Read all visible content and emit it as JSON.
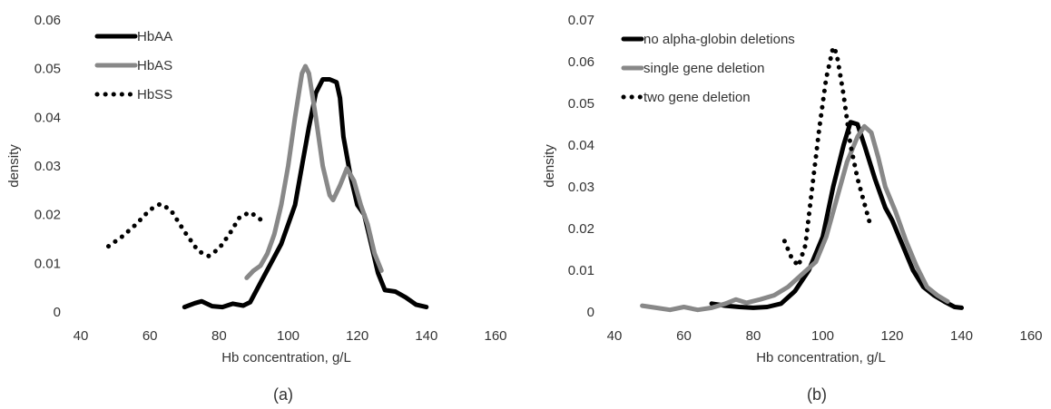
{
  "chart_data": [
    {
      "type": "line",
      "panel_label": "(a)",
      "xlabel": "Hb concentration, g/L",
      "ylabel": "density",
      "xlim": [
        40,
        160
      ],
      "ylim": [
        0,
        0.06
      ],
      "x_ticks": [
        "40",
        "60",
        "80",
        "100",
        "120",
        "140",
        "160"
      ],
      "y_ticks": [
        "0",
        "0.01",
        "0.02",
        "0.03",
        "0.04",
        "0.05",
        "0.06"
      ],
      "grid": false,
      "legend_position": "top-left",
      "series": [
        {
          "name": "HbAA",
          "color": "#000000",
          "style": "solid",
          "points": [
            [
              70,
              0.001
            ],
            [
              73,
              0.0018
            ],
            [
              75,
              0.0022
            ],
            [
              78,
              0.0012
            ],
            [
              81,
              0.001
            ],
            [
              84,
              0.0017
            ],
            [
              87,
              0.0013
            ],
            [
              89,
              0.002
            ],
            [
              92,
              0.006
            ],
            [
              95,
              0.01
            ],
            [
              98,
              0.014
            ],
            [
              100,
              0.018
            ],
            [
              102,
              0.022
            ],
            [
              104,
              0.03
            ],
            [
              106,
              0.038
            ],
            [
              108,
              0.045
            ],
            [
              110,
              0.0478
            ],
            [
              112,
              0.0478
            ],
            [
              114,
              0.0472
            ],
            [
              115,
              0.044
            ],
            [
              116,
              0.036
            ],
            [
              118,
              0.028
            ],
            [
              120,
              0.022
            ],
            [
              122,
              0.02
            ],
            [
              124,
              0.014
            ],
            [
              126,
              0.008
            ],
            [
              128,
              0.0045
            ],
            [
              131,
              0.0042
            ],
            [
              134,
              0.003
            ],
            [
              137,
              0.0015
            ],
            [
              140,
              0.001
            ]
          ]
        },
        {
          "name": "HbAS",
          "color": "#888888",
          "style": "solid",
          "points": [
            [
              88,
              0.007
            ],
            [
              90,
              0.0085
            ],
            [
              92,
              0.0095
            ],
            [
              94,
              0.012
            ],
            [
              96,
              0.016
            ],
            [
              98,
              0.022
            ],
            [
              100,
              0.03
            ],
            [
              102,
              0.04
            ],
            [
              104,
              0.049
            ],
            [
              105,
              0.0505
            ],
            [
              106,
              0.049
            ],
            [
              108,
              0.04
            ],
            [
              110,
              0.03
            ],
            [
              112,
              0.024
            ],
            [
              113,
              0.023
            ],
            [
              115,
              0.026
            ],
            [
              117,
              0.0295
            ],
            [
              119,
              0.027
            ],
            [
              121,
              0.022
            ],
            [
              123,
              0.018
            ],
            [
              125,
              0.012
            ],
            [
              127,
              0.0085
            ]
          ]
        },
        {
          "name": "HbSS",
          "color": "#000000",
          "style": "dotted",
          "points": [
            [
              48,
              0.0135
            ],
            [
              52,
              0.0155
            ],
            [
              56,
              0.018
            ],
            [
              60,
              0.021
            ],
            [
              63,
              0.0222
            ],
            [
              66,
              0.021
            ],
            [
              70,
              0.0165
            ],
            [
              74,
              0.0125
            ],
            [
              77,
              0.0115
            ],
            [
              80,
              0.013
            ],
            [
              83,
              0.016
            ],
            [
              86,
              0.0195
            ],
            [
              89,
              0.0205
            ],
            [
              92,
              0.019
            ]
          ]
        }
      ]
    },
    {
      "type": "line",
      "panel_label": "(b)",
      "xlabel": "Hb concentration, g/L",
      "ylabel": "density",
      "xlim": [
        40,
        160
      ],
      "ylim": [
        0,
        0.07
      ],
      "x_ticks": [
        "40",
        "60",
        "80",
        "100",
        "120",
        "140",
        "160"
      ],
      "y_ticks": [
        "0",
        "0.01",
        "0.02",
        "0.03",
        "0.04",
        "0.05",
        "0.06",
        "0.07"
      ],
      "grid": false,
      "legend_position": "top-left",
      "series": [
        {
          "name": "no alpha-globin deletions",
          "color": "#000000",
          "style": "solid",
          "points": [
            [
              68,
              0.002
            ],
            [
              72,
              0.0015
            ],
            [
              76,
              0.0012
            ],
            [
              80,
              0.001
            ],
            [
              84,
              0.0012
            ],
            [
              88,
              0.002
            ],
            [
              92,
              0.005
            ],
            [
              96,
              0.01
            ],
            [
              100,
              0.018
            ],
            [
              103,
              0.03
            ],
            [
              106,
              0.04
            ],
            [
              108,
              0.0455
            ],
            [
              110,
              0.045
            ],
            [
              112,
              0.04
            ],
            [
              115,
              0.032
            ],
            [
              118,
              0.025
            ],
            [
              120,
              0.022
            ],
            [
              123,
              0.016
            ],
            [
              126,
              0.01
            ],
            [
              129,
              0.006
            ],
            [
              132,
              0.004
            ],
            [
              135,
              0.0025
            ],
            [
              138,
              0.0012
            ],
            [
              140,
              0.001
            ]
          ]
        },
        {
          "name": "single gene deletion",
          "color": "#888888",
          "style": "solid",
          "points": [
            [
              48,
              0.0015
            ],
            [
              52,
              0.001
            ],
            [
              56,
              0.0005
            ],
            [
              60,
              0.0012
            ],
            [
              64,
              0.0005
            ],
            [
              68,
              0.001
            ],
            [
              72,
              0.002
            ],
            [
              75,
              0.003
            ],
            [
              78,
              0.0022
            ],
            [
              82,
              0.003
            ],
            [
              86,
              0.004
            ],
            [
              90,
              0.006
            ],
            [
              94,
              0.009
            ],
            [
              98,
              0.012
            ],
            [
              101,
              0.018
            ],
            [
              104,
              0.027
            ],
            [
              107,
              0.036
            ],
            [
              110,
              0.042
            ],
            [
              112,
              0.0445
            ],
            [
              114,
              0.043
            ],
            [
              116,
              0.037
            ],
            [
              118,
              0.03
            ],
            [
              121,
              0.024
            ],
            [
              124,
              0.017
            ],
            [
              127,
              0.011
            ],
            [
              130,
              0.006
            ],
            [
              133,
              0.004
            ],
            [
              136,
              0.0025
            ]
          ]
        },
        {
          "name": "two gene deletion",
          "color": "#000000",
          "style": "dotted",
          "points": [
            [
              89,
              0.017
            ],
            [
              91,
              0.013
            ],
            [
              93,
              0.011
            ],
            [
              95,
              0.016
            ],
            [
              97,
              0.03
            ],
            [
              99,
              0.044
            ],
            [
              101,
              0.056
            ],
            [
              103,
              0.0635
            ],
            [
              104,
              0.062
            ],
            [
              106,
              0.052
            ],
            [
              108,
              0.04
            ],
            [
              110,
              0.032
            ],
            [
              112,
              0.026
            ],
            [
              114,
              0.02
            ]
          ]
        }
      ]
    }
  ]
}
